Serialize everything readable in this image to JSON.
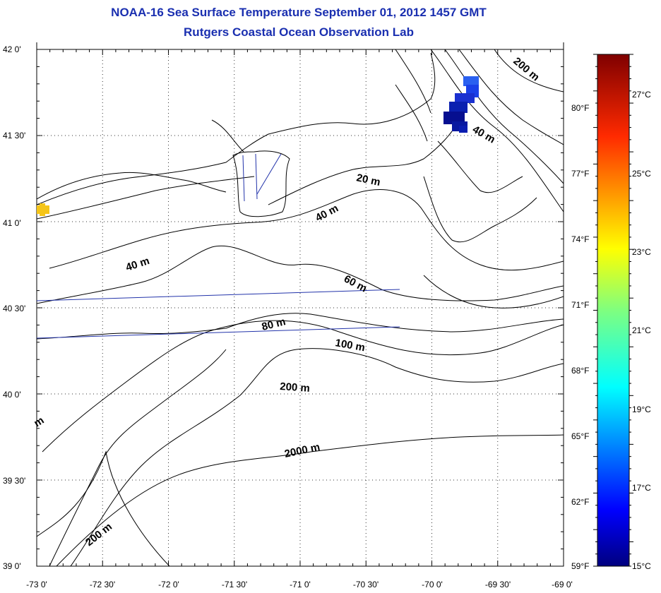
{
  "header": {
    "title": "NOAA-16 Sea Surface Temperature September 01, 2012 1457 GMT",
    "subtitle": "Rutgers Coastal Ocean Observation Lab"
  },
  "map": {
    "lat_labels": [
      "42 0'",
      "41 30'",
      "41 0'",
      "40 30'",
      "40 0'",
      "39 30'",
      "39 0'"
    ],
    "lon_labels": [
      "-73 0'",
      "-72 30'",
      "-72 0'",
      "-71 30'",
      "-71 0'",
      "-70 30'",
      "-70 0'",
      "-69 30'",
      "-69 0'"
    ],
    "depth_labels": [
      "200 m",
      "40 m",
      "20 m",
      "40 m",
      "40 m",
      "60 m",
      "80 m",
      "100 m",
      "200 m",
      "2000 m",
      "200 m",
      "m"
    ]
  },
  "colorbar": {
    "celsius_labels": [
      "27°C",
      "25°C",
      "23°C",
      "21°C",
      "19°C",
      "17°C",
      "15°C"
    ],
    "fahrenheit_labels": [
      "80°F",
      "77°F",
      "74°F",
      "71°F",
      "68°F",
      "65°F",
      "62°F",
      "59°F"
    ],
    "celsius_range": [
      15,
      28.3
    ]
  },
  "colors": {
    "title": "#1a2fb0",
    "coast": "#000000",
    "transect": "#2233aa"
  }
}
